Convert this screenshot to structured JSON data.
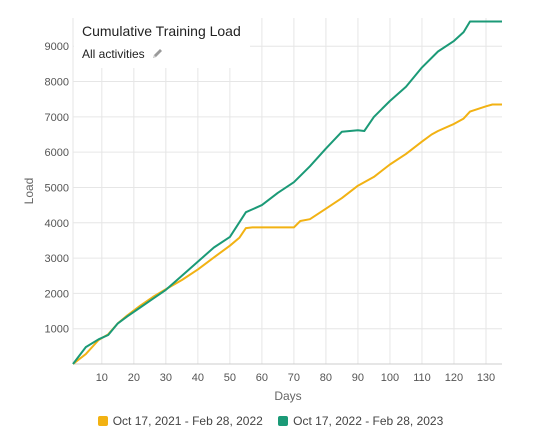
{
  "chart_data": {
    "type": "line",
    "title": "Cumulative Training Load",
    "filter_label": "All activities",
    "xlabel": "Days",
    "ylabel": "Load",
    "xlim": [
      1,
      135
    ],
    "ylim": [
      0,
      9800
    ],
    "x_ticks": [
      10,
      20,
      30,
      40,
      50,
      60,
      70,
      80,
      90,
      100,
      110,
      120,
      130
    ],
    "y_ticks": [
      1000,
      2000,
      3000,
      4000,
      5000,
      6000,
      7000,
      8000,
      9000
    ],
    "grid": true,
    "legend_position": "bottom",
    "series": [
      {
        "name": "Oct 17, 2021 - Feb 28, 2022",
        "color": "#F2B213",
        "x": [
          1,
          5,
          9,
          12,
          15,
          18,
          22,
          26,
          30,
          35,
          40,
          45,
          50,
          53,
          55,
          57,
          60,
          65,
          70,
          72,
          75,
          80,
          85,
          90,
          95,
          100,
          105,
          110,
          113,
          115,
          120,
          123,
          125,
          130,
          132,
          135
        ],
        "y": [
          0,
          280,
          680,
          840,
          1150,
          1380,
          1650,
          1900,
          2120,
          2380,
          2680,
          3020,
          3350,
          3580,
          3850,
          3870,
          3870,
          3870,
          3870,
          4050,
          4100,
          4400,
          4700,
          5050,
          5300,
          5650,
          5950,
          6300,
          6500,
          6600,
          6800,
          6950,
          7150,
          7300,
          7350,
          7350
        ]
      },
      {
        "name": "Oct 17, 2022 - Feb 28, 2023",
        "color": "#1B9A77",
        "x": [
          1,
          5,
          9,
          12,
          15,
          18,
          22,
          26,
          30,
          35,
          40,
          45,
          50,
          55,
          60,
          65,
          70,
          75,
          80,
          85,
          90,
          92,
          95,
          100,
          105,
          110,
          115,
          120,
          123,
          125,
          130,
          135
        ],
        "y": [
          0,
          480,
          700,
          820,
          1150,
          1350,
          1600,
          1850,
          2100,
          2500,
          2900,
          3300,
          3600,
          4300,
          4500,
          4850,
          5150,
          5600,
          6100,
          6580,
          6620,
          6600,
          7000,
          7450,
          7850,
          8400,
          8850,
          9150,
          9400,
          9700,
          9700,
          9700
        ]
      }
    ]
  }
}
